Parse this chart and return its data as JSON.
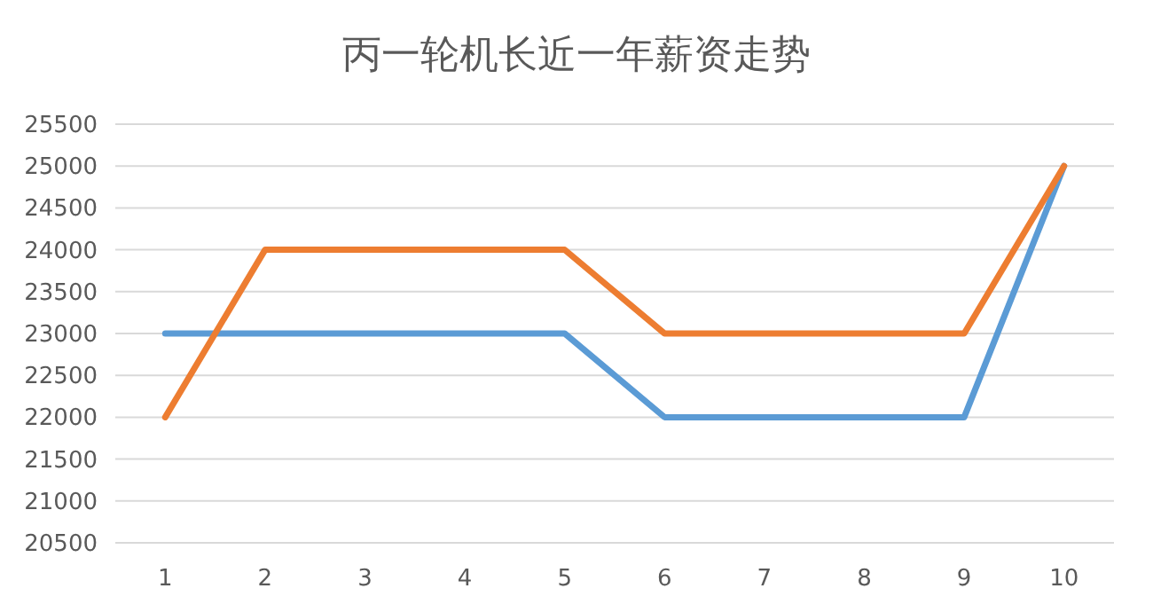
{
  "chart_data": {
    "type": "line",
    "title": "丙一轮机长近一年薪资走势",
    "categories": [
      "1",
      "2",
      "3",
      "4",
      "5",
      "6",
      "7",
      "8",
      "9",
      "10"
    ],
    "series": [
      {
        "color": "#5b9bd5",
        "values": [
          23000,
          23000,
          23000,
          23000,
          23000,
          22000,
          22000,
          22000,
          22000,
          25000
        ]
      },
      {
        "color": "#ed7d31",
        "values": [
          22000,
          24000,
          24000,
          24000,
          24000,
          23000,
          23000,
          23000,
          23000,
          25000
        ]
      }
    ],
    "ylim": [
      20500,
      25500
    ],
    "yticks": [
      20500,
      21000,
      21500,
      22000,
      22500,
      23000,
      23500,
      24000,
      24500,
      25000,
      25500
    ],
    "grid": "y",
    "marker": "none",
    "line_style": "solid"
  }
}
